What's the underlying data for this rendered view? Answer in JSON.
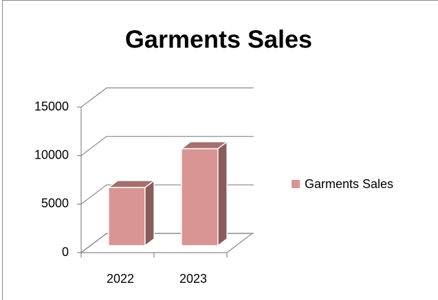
{
  "chart_data": {
    "type": "bar",
    "title": "Garments Sales",
    "categories": [
      "2022",
      "2023"
    ],
    "series": [
      {
        "name": "Garments Sales",
        "color": "#d99594",
        "values": [
          6000,
          10000
        ]
      }
    ],
    "ylim": [
      0,
      15000
    ],
    "yticks": [
      0,
      5000,
      10000,
      15000
    ],
    "grid": true,
    "legend": "right",
    "three_d": true
  }
}
